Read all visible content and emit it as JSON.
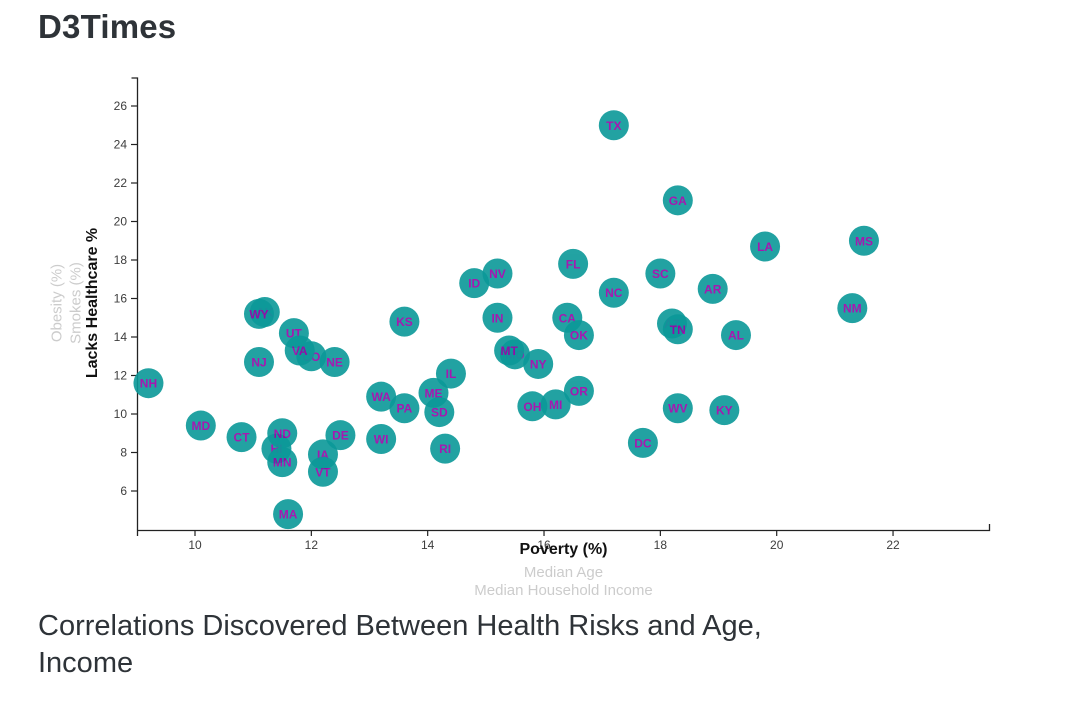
{
  "app": {
    "title": "D3Times"
  },
  "heading": {
    "lines": [
      "Correlations Discovered Between Health Risks and Age,",
      "Income"
    ]
  },
  "chart_data": {
    "type": "scatter",
    "x_metric": "Poverty (%)",
    "y_metric": "Lacks Healthcare %",
    "x_axis": {
      "active_label": "Poverty (%)",
      "inactive_labels": [
        "Median Age",
        "Median Household Income"
      ],
      "ticks": [
        10,
        12,
        14,
        16,
        18,
        20,
        22
      ],
      "range": [
        9.0,
        23.7
      ],
      "grid": false
    },
    "y_axis": {
      "active_label": "Lacks Healthcare %",
      "inactive_labels": [
        "Smokes (%)",
        "Obesity (%)"
      ],
      "ticks": [
        6,
        8,
        10,
        12,
        14,
        16,
        18,
        20,
        22,
        24,
        26
      ],
      "range": [
        4.0,
        27.5
      ],
      "grid": false
    },
    "points": [
      {
        "abbr": "AL",
        "poverty": 19.3,
        "healthcare": 14.1
      },
      {
        "abbr": "AK",
        "poverty": 11.2,
        "healthcare": 15.3
      },
      {
        "abbr": "AZ",
        "poverty": 18.2,
        "healthcare": 14.7
      },
      {
        "abbr": "AR",
        "poverty": 18.9,
        "healthcare": 16.5
      },
      {
        "abbr": "CA",
        "poverty": 16.4,
        "healthcare": 15.0
      },
      {
        "abbr": "CO",
        "poverty": 12.0,
        "healthcare": 13.0
      },
      {
        "abbr": "CT",
        "poverty": 10.8,
        "healthcare": 8.8
      },
      {
        "abbr": "DE",
        "poverty": 12.5,
        "healthcare": 8.9
      },
      {
        "abbr": "DC",
        "poverty": 17.7,
        "healthcare": 8.5
      },
      {
        "abbr": "FL",
        "poverty": 16.5,
        "healthcare": 17.8
      },
      {
        "abbr": "GA",
        "poverty": 18.3,
        "healthcare": 21.1
      },
      {
        "abbr": "HI",
        "poverty": 11.4,
        "healthcare": 8.2
      },
      {
        "abbr": "ID",
        "poverty": 14.8,
        "healthcare": 16.8
      },
      {
        "abbr": "IL",
        "poverty": 14.4,
        "healthcare": 12.1
      },
      {
        "abbr": "IN",
        "poverty": 15.2,
        "healthcare": 15.0
      },
      {
        "abbr": "IA",
        "poverty": 12.2,
        "healthcare": 7.9
      },
      {
        "abbr": "KS",
        "poverty": 13.6,
        "healthcare": 14.8
      },
      {
        "abbr": "KY",
        "poverty": 19.1,
        "healthcare": 10.2
      },
      {
        "abbr": "LA",
        "poverty": 19.8,
        "healthcare": 18.7
      },
      {
        "abbr": "ME",
        "poverty": 14.1,
        "healthcare": 11.1
      },
      {
        "abbr": "MD",
        "poverty": 10.1,
        "healthcare": 9.4
      },
      {
        "abbr": "MA",
        "poverty": 11.6,
        "healthcare": 4.8
      },
      {
        "abbr": "MI",
        "poverty": 16.2,
        "healthcare": 10.5
      },
      {
        "abbr": "MN",
        "poverty": 11.5,
        "healthcare": 7.5
      },
      {
        "abbr": "MS",
        "poverty": 21.5,
        "healthcare": 19.0
      },
      {
        "abbr": "MO",
        "poverty": 15.5,
        "healthcare": 13.1
      },
      {
        "abbr": "MT",
        "poverty": 15.4,
        "healthcare": 13.3
      },
      {
        "abbr": "NE",
        "poverty": 12.4,
        "healthcare": 12.7
      },
      {
        "abbr": "NV",
        "poverty": 15.2,
        "healthcare": 17.3
      },
      {
        "abbr": "NH",
        "poverty": 9.2,
        "healthcare": 11.6
      },
      {
        "abbr": "NJ",
        "poverty": 11.1,
        "healthcare": 12.7
      },
      {
        "abbr": "NM",
        "poverty": 21.3,
        "healthcare": 15.5
      },
      {
        "abbr": "NY",
        "poverty": 15.9,
        "healthcare": 12.6
      },
      {
        "abbr": "NC",
        "poverty": 17.2,
        "healthcare": 16.3
      },
      {
        "abbr": "ND",
        "poverty": 11.5,
        "healthcare": 9.0
      },
      {
        "abbr": "OH",
        "poverty": 15.8,
        "healthcare": 10.4
      },
      {
        "abbr": "OK",
        "poverty": 16.6,
        "healthcare": 14.1
      },
      {
        "abbr": "OR",
        "poverty": 16.6,
        "healthcare": 11.2
      },
      {
        "abbr": "PA",
        "poverty": 13.6,
        "healthcare": 10.3
      },
      {
        "abbr": "RI",
        "poverty": 14.3,
        "healthcare": 8.2
      },
      {
        "abbr": "SC",
        "poverty": 18.0,
        "healthcare": 17.3
      },
      {
        "abbr": "SD",
        "poverty": 14.2,
        "healthcare": 10.1
      },
      {
        "abbr": "TN",
        "poverty": 18.3,
        "healthcare": 14.4
      },
      {
        "abbr": "TX",
        "poverty": 17.2,
        "healthcare": 25.0
      },
      {
        "abbr": "UT",
        "poverty": 11.7,
        "healthcare": 14.2
      },
      {
        "abbr": "VT",
        "poverty": 12.2,
        "healthcare": 7.0
      },
      {
        "abbr": "VA",
        "poverty": 11.8,
        "healthcare": 13.3
      },
      {
        "abbr": "WA",
        "poverty": 13.2,
        "healthcare": 10.9
      },
      {
        "abbr": "WV",
        "poverty": 18.3,
        "healthcare": 10.3
      },
      {
        "abbr": "WI",
        "poverty": 13.2,
        "healthcare": 8.7
      },
      {
        "abbr": "WY",
        "poverty": 11.1,
        "healthcare": 15.2
      }
    ],
    "colors": {
      "circle_fill": "#0b9999",
      "circle_opacity": "0.9",
      "point_label": "#9d00a8",
      "axis": "#222222",
      "tick_text": "#3d3d3d",
      "inactive_label": "#cccccc",
      "heading_text": "#2e3338"
    },
    "point_radius": 15,
    "legend": "none"
  }
}
